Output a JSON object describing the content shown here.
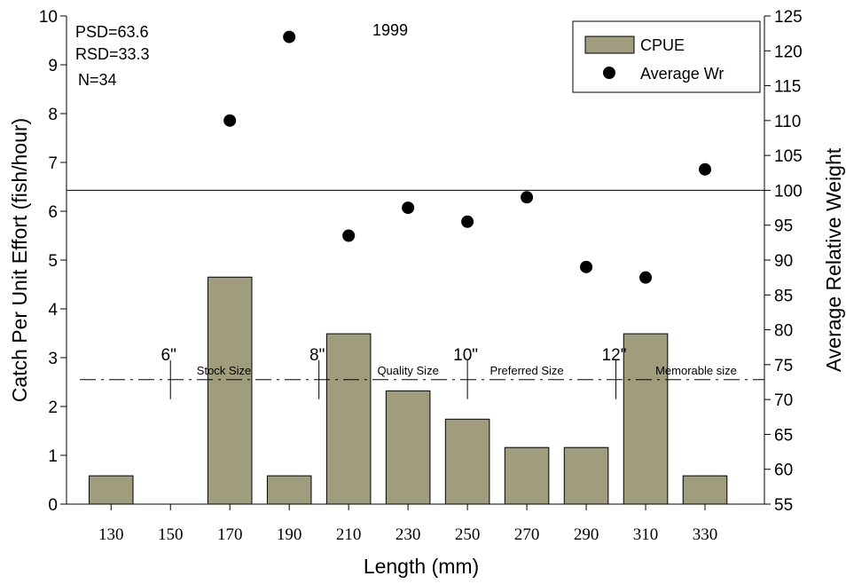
{
  "chart_data": {
    "type": "bar",
    "title": "1999",
    "xlabel": "Length (mm)",
    "ylabel": "Catch Per Unit Effort (fish/hour)",
    "y2label": "Average Relative Weight",
    "categories": [
      "130",
      "150",
      "170",
      "190",
      "210",
      "230",
      "250",
      "270",
      "290",
      "310",
      "330"
    ],
    "x": [
      130,
      150,
      170,
      190,
      210,
      230,
      250,
      270,
      290,
      310,
      330
    ],
    "xlim": [
      115,
      350
    ],
    "ylim": [
      0,
      10
    ],
    "y2lim": [
      55,
      125
    ],
    "yticks": [
      "0",
      "1",
      "2",
      "3",
      "4",
      "5",
      "6",
      "7",
      "8",
      "9",
      "10"
    ],
    "y2ticks": [
      "55",
      "60",
      "65",
      "70",
      "75",
      "80",
      "85",
      "90",
      "95",
      "100",
      "105",
      "110",
      "115",
      "120",
      "125"
    ],
    "series": [
      {
        "name": "CPUE",
        "kind": "bar",
        "axis": "left",
        "color": "#a09c7e",
        "values": [
          0.58,
          0,
          4.65,
          0.58,
          3.49,
          2.32,
          1.74,
          1.16,
          1.16,
          3.49,
          0.58
        ]
      },
      {
        "name": "Average Wr",
        "kind": "scatter",
        "axis": "right",
        "color": "#000000",
        "points": [
          {
            "x": 170,
            "y": 110
          },
          {
            "x": 190,
            "y": 122
          },
          {
            "x": 210,
            "y": 93.5
          },
          {
            "x": 230,
            "y": 97.5
          },
          {
            "x": 250,
            "y": 95.5
          },
          {
            "x": 270,
            "y": 99
          },
          {
            "x": 290,
            "y": 89
          },
          {
            "x": 310,
            "y": 87.5
          },
          {
            "x": 330,
            "y": 103
          }
        ]
      }
    ],
    "reference_line": {
      "axis": "right",
      "y": 100
    },
    "size_line": {
      "axis": "left",
      "y": 2.55,
      "boundaries": [
        150,
        200,
        250,
        300
      ],
      "inch_labels": [
        "6\"",
        "8\"",
        "10\"",
        "12\""
      ],
      "zones": [
        {
          "label": "Stock Size",
          "x": 168
        },
        {
          "label": "Quality Size",
          "x": 230
        },
        {
          "label": "Preferred Size",
          "x": 270
        },
        {
          "label": "Memorable size",
          "x": 327
        }
      ]
    },
    "annotations": [
      "PSD=63.6",
      "RSD=33.3",
      "N=34"
    ],
    "legend": {
      "position": "top-right",
      "entries": [
        "CPUE",
        "Average Wr"
      ]
    },
    "grid": false
  }
}
